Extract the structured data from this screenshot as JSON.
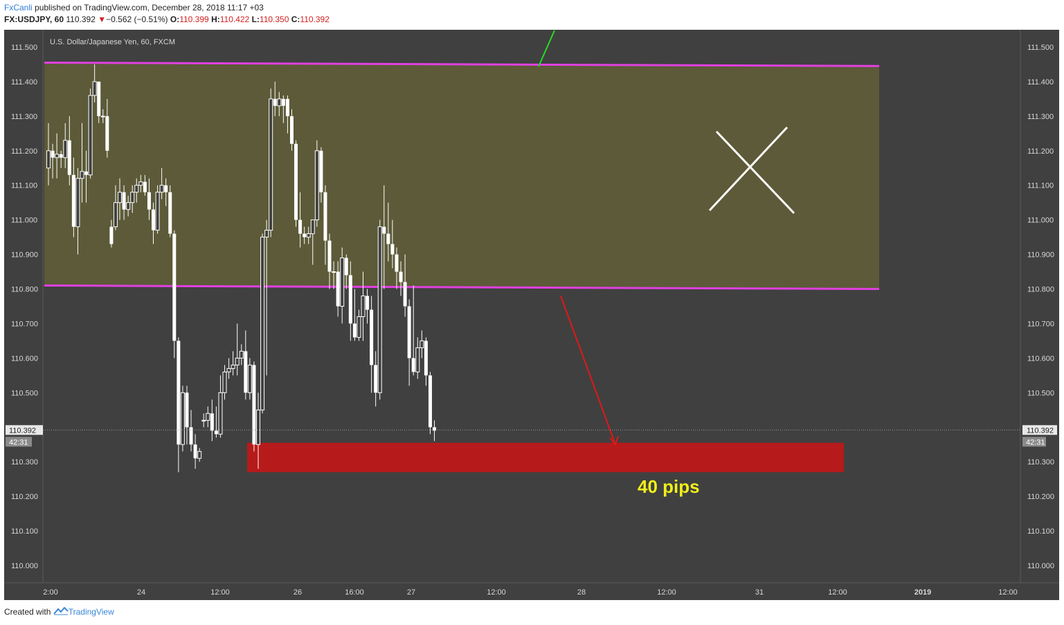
{
  "header": {
    "author": "FxCanli",
    "published": "published on TradingView.com, December 28, 2018 11:17 +03",
    "symbol": "FX:USDJPY, 60",
    "last": "110.392",
    "change": "−0.562 (−0.51%)",
    "o_label": "O:",
    "o_value": "110.399",
    "h_label": "H:",
    "h_value": "110.422",
    "l_label": "L:",
    "l_value": "110.350",
    "c_label": "C:",
    "c_value": "110.392"
  },
  "footer": {
    "created": "Created with",
    "brand": "TradingView"
  },
  "colors": {
    "background": "#404040",
    "zone_fill": "#5c5a38",
    "zone_border": "#e040e0",
    "target_fill": "#b71a1a",
    "arrow": "#e01818",
    "trend_line": "#22dd22",
    "target_label": "#f2ef1a",
    "candle": "#ffffff"
  },
  "chart_data": {
    "type": "candlestick",
    "title": "U.S. Dollar/Japanese Yen, 60, FXCM",
    "ylim": [
      109.95,
      111.55
    ],
    "y_ticks": [
      "111.500",
      "111.400",
      "111.300",
      "111.200",
      "111.100",
      "111.000",
      "110.900",
      "110.800",
      "110.700",
      "110.600",
      "110.500",
      "110.300",
      "110.200",
      "110.100",
      "110.000"
    ],
    "x_ticks": [
      "2:00",
      "24",
      "12:00",
      "26",
      "16:00",
      "27",
      "12:00",
      "28",
      "12:00",
      "31",
      "12:00",
      "2019",
      "12:00"
    ],
    "x_ticks_bold": [
      "2019"
    ],
    "current_price": "110.392",
    "countdown": "42:31",
    "candles": [
      [
        111.15,
        111.2,
        111.1,
        111.28
      ],
      [
        111.2,
        111.18,
        111.12,
        111.22
      ],
      [
        111.18,
        111.19,
        111.12,
        111.25
      ],
      [
        111.19,
        111.18,
        111.15,
        111.2
      ],
      [
        111.18,
        111.23,
        111.15,
        111.28
      ],
      [
        111.23,
        111.13,
        111.1,
        111.3
      ],
      [
        111.13,
        110.98,
        110.95,
        111.18
      ],
      [
        110.98,
        111.12,
        110.9,
        111.15
      ],
      [
        111.12,
        111.14,
        111.05,
        111.28
      ],
      [
        111.14,
        111.13,
        111.05,
        111.2
      ],
      [
        111.13,
        111.36,
        111.12,
        111.38
      ],
      [
        111.36,
        111.4,
        111.34,
        111.45
      ],
      [
        111.4,
        111.3,
        111.28,
        111.4
      ],
      [
        111.3,
        111.3,
        111.28,
        111.32
      ],
      [
        111.3,
        111.2,
        111.18,
        111.35
      ],
      [
        110.98,
        110.93,
        110.92,
        111.0
      ],
      [
        110.98,
        111.05,
        110.97,
        111.1
      ],
      [
        111.05,
        111.08,
        111.0,
        111.12
      ],
      [
        111.08,
        111.03,
        111.0,
        111.1
      ],
      [
        111.03,
        111.05,
        111.01,
        111.07
      ],
      [
        111.05,
        111.08,
        111.02,
        111.1
      ],
      [
        111.08,
        111.1,
        111.05,
        111.12
      ],
      [
        111.1,
        111.11,
        111.08,
        111.13
      ],
      [
        111.11,
        111.08,
        111.07,
        111.13
      ],
      [
        111.08,
        111.03,
        111.0,
        111.12
      ],
      [
        111.03,
        110.97,
        110.93,
        111.05
      ],
      [
        110.97,
        111.08,
        110.96,
        111.1
      ],
      [
        111.08,
        111.1,
        111.06,
        111.15
      ],
      [
        111.1,
        111.08,
        111.04,
        111.12
      ],
      [
        111.08,
        110.96,
        110.95,
        111.1
      ],
      [
        110.96,
        110.65,
        110.6,
        110.97
      ],
      [
        110.65,
        110.35,
        110.27,
        110.66
      ],
      [
        110.35,
        110.5,
        110.33,
        110.52
      ],
      [
        110.5,
        110.4,
        110.35,
        110.52
      ],
      [
        110.4,
        110.35,
        110.33,
        110.45
      ],
      [
        110.35,
        110.31,
        110.28,
        110.38
      ],
      [
        110.31,
        110.33,
        110.3,
        110.34
      ],
      [
        110.42,
        110.42,
        110.4,
        110.44
      ],
      [
        110.42,
        110.44,
        110.4,
        110.46
      ],
      [
        110.44,
        110.39,
        110.36,
        110.48
      ],
      [
        110.39,
        110.38,
        110.37,
        110.46
      ],
      [
        110.38,
        110.5,
        110.37,
        110.55
      ],
      [
        110.5,
        110.56,
        110.48,
        110.58
      ],
      [
        110.56,
        110.57,
        110.54,
        110.6
      ],
      [
        110.57,
        110.58,
        110.55,
        110.62
      ],
      [
        110.58,
        110.6,
        110.55,
        110.7
      ],
      [
        110.6,
        110.62,
        110.58,
        110.64
      ],
      [
        110.62,
        110.5,
        110.48,
        110.68
      ],
      [
        110.5,
        110.58,
        110.48,
        110.6
      ],
      [
        110.58,
        110.35,
        110.33,
        110.59
      ],
      [
        110.35,
        110.45,
        110.28,
        110.5
      ],
      [
        110.45,
        110.95,
        110.44,
        110.96
      ],
      [
        110.95,
        110.97,
        110.55,
        111.0
      ],
      [
        110.97,
        111.35,
        110.95,
        111.38
      ],
      [
        111.35,
        111.33,
        111.3,
        111.4
      ],
      [
        111.33,
        111.35,
        111.3,
        111.37
      ],
      [
        111.35,
        111.33,
        111.28,
        111.36
      ],
      [
        111.35,
        111.3,
        111.25,
        111.36
      ],
      [
        111.3,
        111.22,
        111.2,
        111.32
      ],
      [
        111.22,
        111.0,
        110.98,
        111.23
      ],
      [
        111.0,
        110.96,
        110.92,
        111.08
      ],
      [
        110.96,
        110.95,
        110.93,
        110.98
      ],
      [
        110.95,
        110.96,
        110.93,
        110.98
      ],
      [
        110.96,
        111.0,
        110.87,
        111.0
      ],
      [
        111.0,
        111.2,
        110.98,
        111.23
      ],
      [
        111.2,
        111.08,
        111.05,
        111.21
      ],
      [
        111.08,
        110.94,
        110.87,
        111.1
      ],
      [
        110.94,
        110.85,
        110.8,
        110.96
      ],
      [
        110.85,
        110.85,
        110.8,
        110.88
      ],
      [
        110.85,
        110.75,
        110.72,
        110.88
      ],
      [
        110.75,
        110.89,
        110.7,
        110.92
      ],
      [
        110.89,
        110.84,
        110.8,
        110.9
      ],
      [
        110.84,
        110.7,
        110.65,
        110.88
      ],
      [
        110.7,
        110.66,
        110.65,
        110.8
      ],
      [
        110.66,
        110.72,
        110.65,
        110.74
      ],
      [
        110.72,
        110.78,
        110.65,
        110.85
      ],
      [
        110.78,
        110.74,
        110.7,
        110.8
      ],
      [
        110.74,
        110.58,
        110.5,
        110.78
      ],
      [
        110.58,
        110.5,
        110.46,
        110.62
      ],
      [
        110.5,
        110.98,
        110.48,
        111.0
      ],
      [
        110.98,
        110.96,
        110.8,
        111.1
      ],
      [
        110.96,
        110.93,
        110.88,
        111.05
      ],
      [
        110.93,
        110.9,
        110.86,
        111.0
      ],
      [
        110.9,
        110.85,
        110.8,
        110.92
      ],
      [
        110.85,
        110.82,
        110.78,
        110.88
      ],
      [
        110.82,
        110.75,
        110.72,
        110.9
      ],
      [
        110.75,
        110.6,
        110.52,
        110.77
      ],
      [
        110.6,
        110.56,
        110.55,
        110.81
      ],
      [
        110.56,
        110.63,
        110.54,
        110.66
      ],
      [
        110.63,
        110.65,
        110.6,
        110.68
      ],
      [
        110.65,
        110.55,
        110.52,
        110.66
      ],
      [
        110.55,
        110.4,
        110.38,
        110.56
      ],
      [
        110.4,
        110.39,
        110.36,
        110.42
      ]
    ],
    "annotations": {
      "resistance_zone": {
        "top_left": 111.455,
        "top_right": 111.445,
        "bottom_left": 110.81,
        "bottom_right": 110.8
      },
      "target_zone": {
        "top": 110.355,
        "bottom": 110.27
      },
      "target_label": "40 pips",
      "arrow": {
        "from_price": 110.78,
        "to_price": 110.35
      },
      "cross_mark": true,
      "green_trend_line": true
    },
    "grid": false
  }
}
